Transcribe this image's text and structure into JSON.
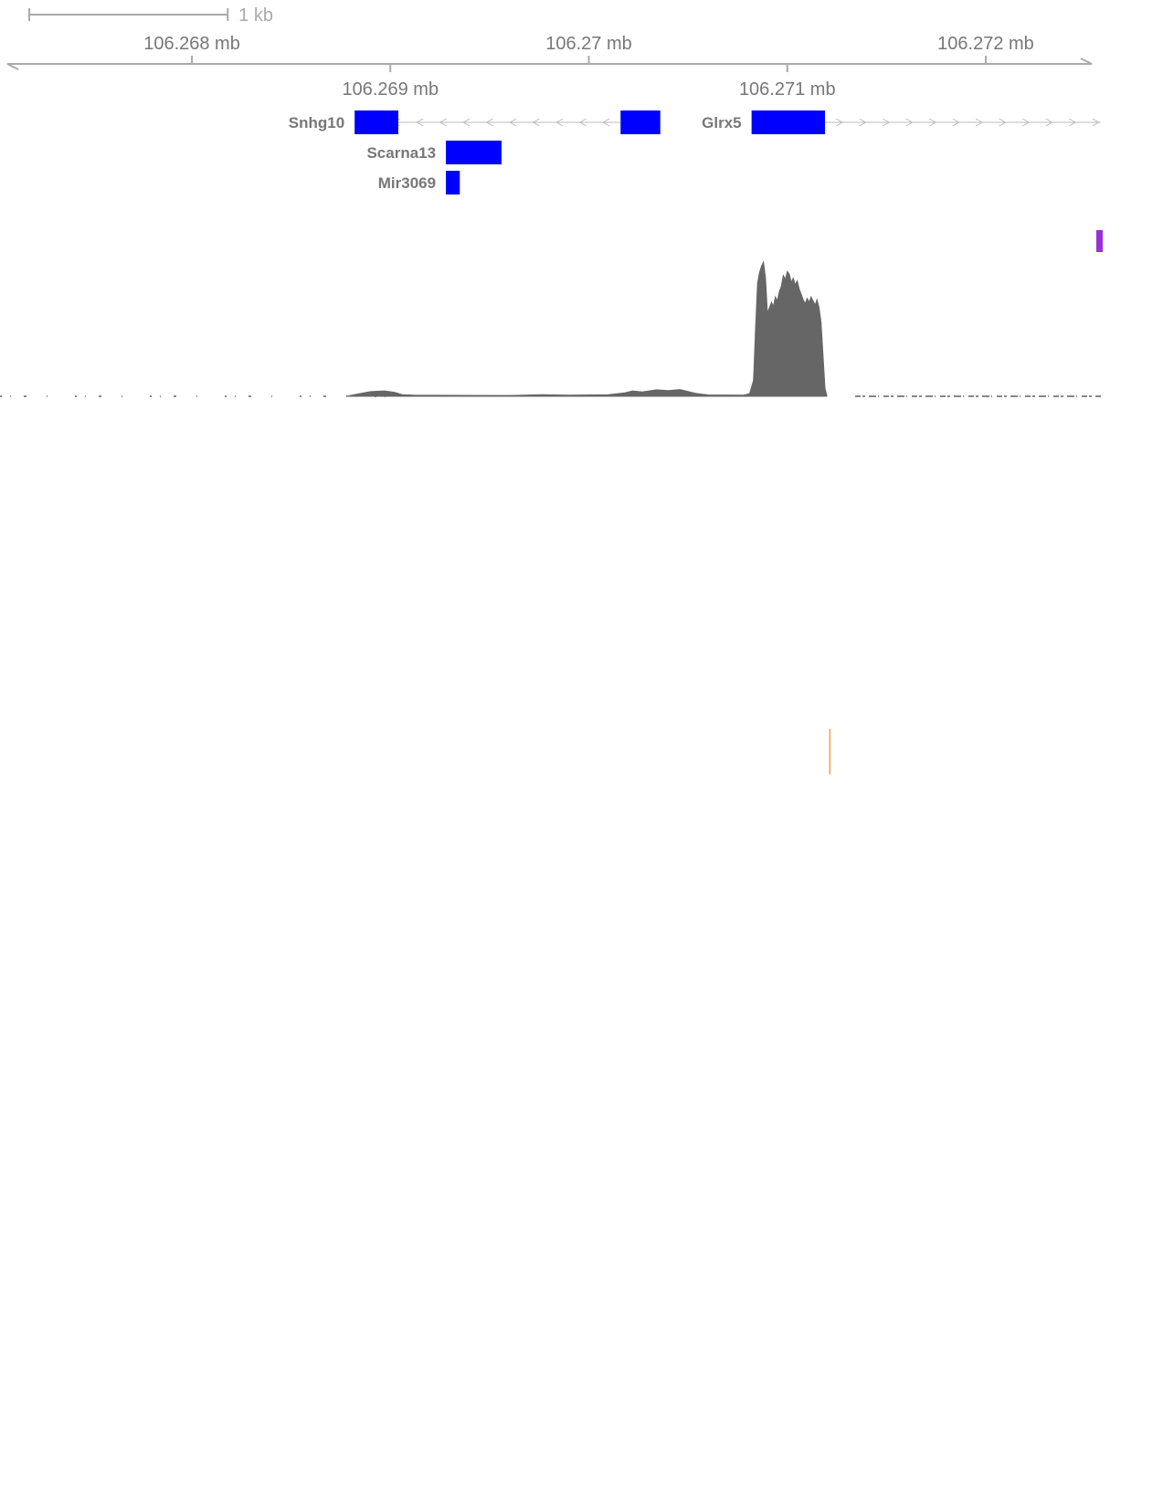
{
  "chart_data": {
    "type": "area",
    "scale_bar": {
      "label": "1 kb",
      "length_bp": 1000
    },
    "region": {
      "start_mb": 106.26707,
      "end_mb": 106.27258
    },
    "axis": {
      "ticks_top": [
        {
          "value": 106.268,
          "label": "106.268 mb"
        },
        {
          "value": 106.27,
          "label": "106.27 mb"
        },
        {
          "value": 106.272,
          "label": "106.272 mb"
        }
      ],
      "ticks_bottom": [
        {
          "value": 106.269,
          "label": "106.269 mb"
        },
        {
          "value": 106.271,
          "label": "106.271 mb"
        }
      ]
    },
    "genes": [
      {
        "name": "Snhg10",
        "strand": "-",
        "start_mb": 106.26882,
        "end_mb": 106.27036,
        "row": 0,
        "label_side": "left",
        "exons": [
          [
            106.26882,
            106.26904
          ],
          [
            106.27016,
            106.27036
          ]
        ]
      },
      {
        "name": "Glrx5",
        "strand": "+",
        "start_mb": 106.27082,
        "end_mb": 106.27258,
        "row": 0,
        "label_side": "left",
        "exons": [
          [
            106.27082,
            106.27119
          ]
        ]
      },
      {
        "name": "Scarna13",
        "strand": "+",
        "start_mb": 106.26928,
        "end_mb": 106.26956,
        "row": 1,
        "label_side": "left",
        "exons": [
          [
            106.26928,
            106.26956
          ]
        ]
      },
      {
        "name": "Mir3069",
        "strand": "+",
        "start_mb": 106.26928,
        "end_mb": 106.26935,
        "row": 2,
        "label_side": "left",
        "exons": [
          [
            106.26928,
            106.26935
          ]
        ]
      }
    ],
    "gene_color": "#0000ff",
    "intron_color": "#bbbbbb",
    "signal": {
      "color": "#666666",
      "baseline_color": "#888888",
      "ylim": [
        0,
        1
      ],
      "points": [
        [
          106.26878,
          0.0
        ],
        [
          106.26883,
          0.015
        ],
        [
          106.2689,
          0.035
        ],
        [
          106.26897,
          0.04
        ],
        [
          106.26902,
          0.03
        ],
        [
          106.26906,
          0.012
        ],
        [
          106.26912,
          0.008
        ],
        [
          106.2696,
          0.006
        ],
        [
          106.26976,
          0.012
        ],
        [
          106.2699,
          0.008
        ],
        [
          106.2701,
          0.012
        ],
        [
          106.27018,
          0.025
        ],
        [
          106.27022,
          0.04
        ],
        [
          106.27027,
          0.032
        ],
        [
          106.27034,
          0.048
        ],
        [
          106.2704,
          0.042
        ],
        [
          106.27046,
          0.05
        ],
        [
          106.2705,
          0.036
        ],
        [
          106.27054,
          0.022
        ],
        [
          106.2706,
          0.01
        ],
        [
          106.27078,
          0.008
        ],
        [
          106.27081,
          0.02
        ],
        [
          106.27083,
          0.12
        ],
        [
          106.27084,
          0.5
        ],
        [
          106.27085,
          0.84
        ],
        [
          106.27086,
          0.92
        ],
        [
          106.27087,
          0.97
        ],
        [
          106.27088,
          1.0
        ],
        [
          106.27089,
          0.88
        ],
        [
          106.2709,
          0.62
        ],
        [
          106.27091,
          0.66
        ],
        [
          106.27092,
          0.7
        ],
        [
          106.27093,
          0.67
        ],
        [
          106.27094,
          0.74
        ],
        [
          106.27095,
          0.71
        ],
        [
          106.27096,
          0.78
        ],
        [
          106.27097,
          0.82
        ],
        [
          106.27098,
          0.9
        ],
        [
          106.27099,
          0.87
        ],
        [
          106.271,
          0.93
        ],
        [
          106.27101,
          0.91
        ],
        [
          106.27102,
          0.85
        ],
        [
          106.27103,
          0.88
        ],
        [
          106.27104,
          0.83
        ],
        [
          106.27105,
          0.86
        ],
        [
          106.27106,
          0.8
        ],
        [
          106.27107,
          0.76
        ],
        [
          106.27108,
          0.72
        ],
        [
          106.27109,
          0.69
        ],
        [
          106.2711,
          0.73
        ],
        [
          106.27111,
          0.7
        ],
        [
          106.27112,
          0.74
        ],
        [
          106.27113,
          0.71
        ],
        [
          106.27114,
          0.68
        ],
        [
          106.27115,
          0.72
        ],
        [
          106.27116,
          0.66
        ],
        [
          106.27117,
          0.55
        ],
        [
          106.27118,
          0.3
        ],
        [
          106.27119,
          0.06
        ],
        [
          106.2712,
          0.0
        ]
      ]
    },
    "markers": [
      {
        "position_mb": 106.27258,
        "color": "#9b30d9"
      },
      {
        "position_mb": 106.27121,
        "color": "#e8b87a"
      }
    ]
  }
}
